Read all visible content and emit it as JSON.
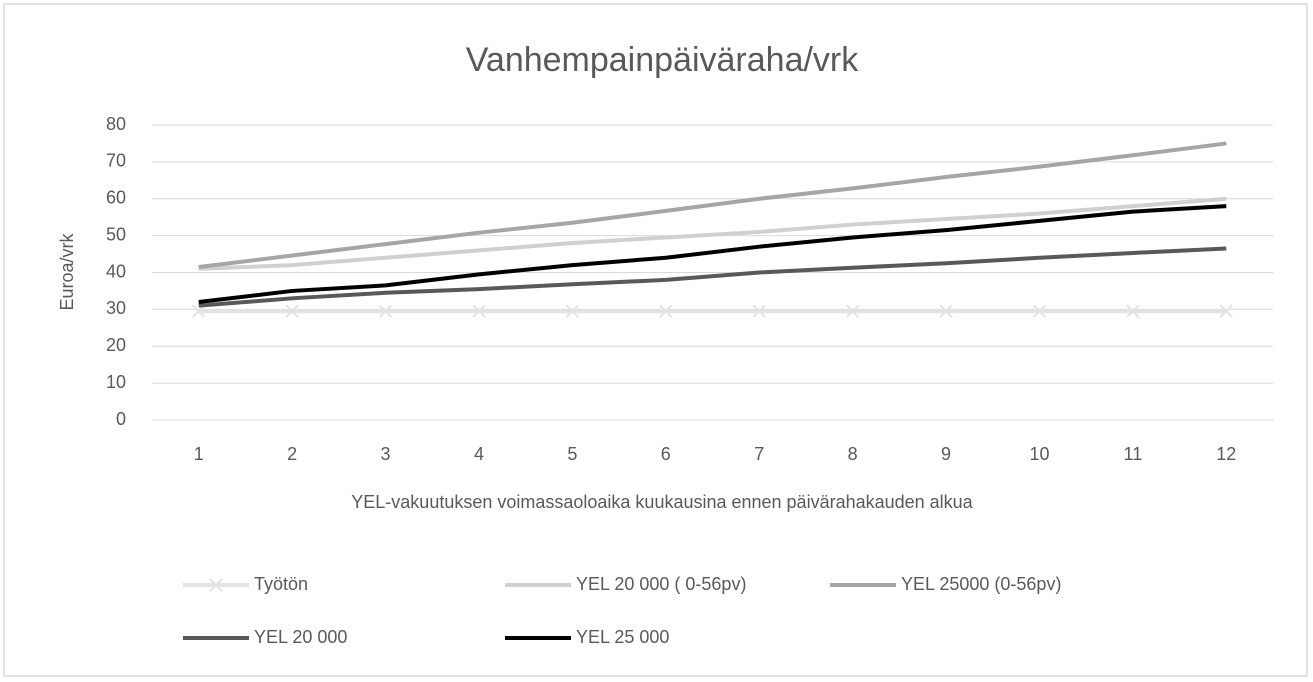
{
  "chart_data": {
    "type": "line",
    "title": "Vanhempainpäiväraha/vrk",
    "x_label": "YEL-vakuutuksen voimassaoloaika kuukausina ennen päivärahakauden alkua",
    "y_label": "Euroa/vrk",
    "categories": [
      "1",
      "2",
      "3",
      "4",
      "5",
      "6",
      "7",
      "8",
      "9",
      "10",
      "11",
      "12"
    ],
    "ylim": [
      0,
      80
    ],
    "yticks": [
      0,
      10,
      20,
      30,
      40,
      50,
      60,
      70,
      80
    ],
    "grid": true,
    "legend": "bottom",
    "series": [
      {
        "name": "Työtön",
        "color": "#e3e3e3",
        "marker": "x",
        "values": [
          29.5,
          29.5,
          29.5,
          29.5,
          29.5,
          29.5,
          29.5,
          29.5,
          29.5,
          29.5,
          29.5,
          29.5
        ]
      },
      {
        "name": "YEL 20 000 ( 0-56pv)",
        "color": "#d0d0d0",
        "values": [
          41,
          42,
          44,
          46,
          48,
          49.5,
          51,
          53,
          54.5,
          56,
          58,
          60
        ]
      },
      {
        "name": "YEL 25000 (0-56pv)",
        "color": "#a6a6a6",
        "values": [
          41.5,
          44.6,
          47.7,
          50.8,
          53.5,
          56.7,
          60,
          62.8,
          65.9,
          68.7,
          71.8,
          75
        ]
      },
      {
        "name": "YEL 20 000",
        "color": "#595959",
        "values": [
          31,
          33,
          34.5,
          35.5,
          36.8,
          38,
          40,
          41.3,
          42.5,
          44,
          45.3,
          46.5
        ]
      },
      {
        "name": "YEL 25 000",
        "color": "#000000",
        "values": [
          32,
          35,
          36.5,
          39.5,
          42,
          44,
          47,
          49.5,
          51.5,
          54,
          56.5,
          58
        ]
      }
    ]
  }
}
